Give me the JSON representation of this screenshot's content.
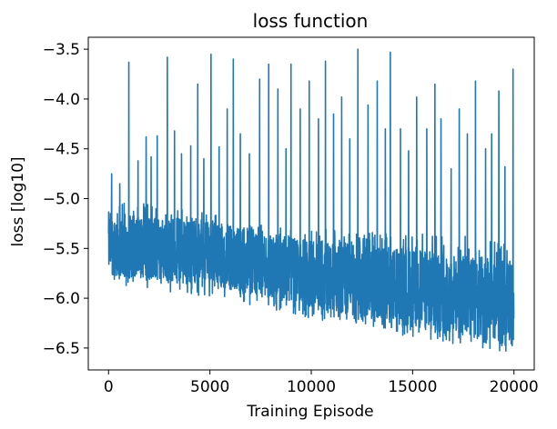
{
  "chart_data": {
    "type": "line",
    "title": "loss function",
    "xlabel": "Training Episode",
    "ylabel": "loss [log10]",
    "xlim": [
      -1000,
      21000
    ],
    "ylim": [
      -6.72,
      -3.38
    ],
    "x_ticks": [
      0,
      5000,
      10000,
      15000,
      20000
    ],
    "y_ticks": [
      -6.5,
      -6.0,
      -5.5,
      -5.0,
      -4.5,
      -4.0,
      -3.5
    ],
    "x_tick_labels": [
      "0",
      "5000",
      "10000",
      "15000",
      "20000"
    ],
    "y_tick_labels": [
      "−6.5",
      "−6.0",
      "−5.5",
      "−5.0",
      "−4.5",
      "−4.0",
      "−3.5"
    ],
    "grid": false,
    "legend": "none",
    "series_color": "#1f77b4",
    "x_range": [
      0,
      20000
    ],
    "mean_trend": {
      "x": [
        0,
        5000,
        10000,
        15000,
        20000
      ],
      "y": [
        -5.45,
        -5.55,
        -5.75,
        -5.9,
        -6.05
      ]
    },
    "band_low_trend": {
      "x": [
        0,
        5000,
        10000,
        15000,
        20000
      ],
      "y": [
        -5.85,
        -6.0,
        -6.2,
        -6.4,
        -6.55
      ]
    },
    "band_high_trend": {
      "x": [
        0,
        5000,
        10000,
        15000,
        20000
      ],
      "y": [
        -5.0,
        -5.15,
        -5.3,
        -5.35,
        -5.4
      ]
    },
    "spikes": [
      {
        "x": 150,
        "y": -4.75
      },
      {
        "x": 550,
        "y": -4.85
      },
      {
        "x": 1000,
        "y": -3.63
      },
      {
        "x": 1450,
        "y": -4.62
      },
      {
        "x": 1850,
        "y": -4.38
      },
      {
        "x": 2100,
        "y": -4.58
      },
      {
        "x": 2400,
        "y": -4.37
      },
      {
        "x": 2900,
        "y": -3.58
      },
      {
        "x": 3250,
        "y": -4.32
      },
      {
        "x": 3600,
        "y": -4.55
      },
      {
        "x": 4050,
        "y": -4.47
      },
      {
        "x": 4400,
        "y": -3.85
      },
      {
        "x": 4700,
        "y": -4.6
      },
      {
        "x": 5050,
        "y": -3.55
      },
      {
        "x": 5450,
        "y": -4.48
      },
      {
        "x": 5850,
        "y": -4.1
      },
      {
        "x": 6150,
        "y": -3.6
      },
      {
        "x": 6500,
        "y": -4.35
      },
      {
        "x": 6950,
        "y": -4.55
      },
      {
        "x": 7450,
        "y": -3.8
      },
      {
        "x": 7900,
        "y": -3.65
      },
      {
        "x": 8350,
        "y": -3.9
      },
      {
        "x": 8750,
        "y": -4.5
      },
      {
        "x": 9000,
        "y": -3.65
      },
      {
        "x": 9450,
        "y": -4.1
      },
      {
        "x": 9900,
        "y": -3.82
      },
      {
        "x": 10350,
        "y": -4.2
      },
      {
        "x": 10700,
        "y": -3.62
      },
      {
        "x": 11100,
        "y": -4.15
      },
      {
        "x": 11500,
        "y": -3.98
      },
      {
        "x": 11900,
        "y": -4.4
      },
      {
        "x": 12300,
        "y": -3.5
      },
      {
        "x": 12800,
        "y": -4.06
      },
      {
        "x": 13250,
        "y": -3.82
      },
      {
        "x": 13650,
        "y": -4.3
      },
      {
        "x": 13900,
        "y": -3.53
      },
      {
        "x": 14400,
        "y": -4.3
      },
      {
        "x": 14800,
        "y": -4.52
      },
      {
        "x": 15200,
        "y": -3.98
      },
      {
        "x": 15700,
        "y": -4.3
      },
      {
        "x": 16100,
        "y": -3.85
      },
      {
        "x": 16400,
        "y": -4.2
      },
      {
        "x": 16900,
        "y": -4.7
      },
      {
        "x": 17300,
        "y": -4.1
      },
      {
        "x": 17700,
        "y": -4.35
      },
      {
        "x": 18100,
        "y": -3.82
      },
      {
        "x": 18600,
        "y": -4.5
      },
      {
        "x": 18900,
        "y": -4.35
      },
      {
        "x": 19250,
        "y": -3.92
      },
      {
        "x": 19550,
        "y": -4.68
      },
      {
        "x": 19950,
        "y": -3.7
      }
    ]
  }
}
